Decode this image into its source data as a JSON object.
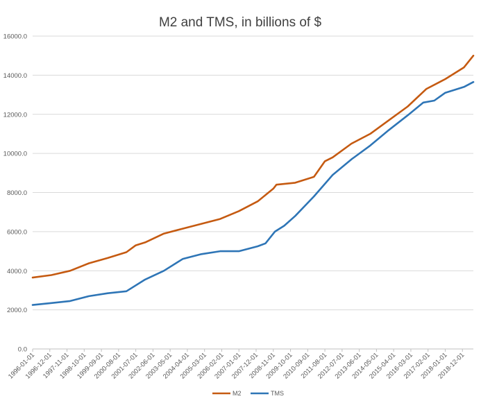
{
  "chart_data": {
    "type": "line",
    "title": "M2 and TMS, in billions of $",
    "xlabel": "",
    "ylabel": "",
    "ylim": [
      0,
      16000
    ],
    "y_ticks": [
      "0.0",
      "2000.0",
      "4000.0",
      "6000.0",
      "8000.0",
      "10000.0",
      "12000.0",
      "14000.0",
      "16000.0"
    ],
    "x_start": "1996-01",
    "x_end": "2019-07",
    "x_tick_labels": [
      "1996-01-01",
      "1996-12-01",
      "1997-11-01",
      "1998-10-01",
      "1999-09-01",
      "2000-08-01",
      "2001-07-01",
      "2002-06-01",
      "2003-05-01",
      "2004-04-01",
      "2005-03-01",
      "2006-02-01",
      "2007-01-01",
      "2007-12-01",
      "2008-11-01",
      "2009-10-01",
      "2010-09-01",
      "2011-08-01",
      "2012-07-01",
      "2013-06-01",
      "2014-05-01",
      "2015-04-01",
      "2016-03-01",
      "2017-02-01",
      "2018-01-01",
      "2018-12-01"
    ],
    "grid": true,
    "legend_position": "bottom",
    "series": [
      {
        "name": "M2",
        "color": "#c55a11",
        "x": [
          "1996-01-01",
          "1997-01-01",
          "1998-01-01",
          "1999-01-01",
          "2000-01-01",
          "2001-01-01",
          "2001-07-01",
          "2002-01-01",
          "2003-01-01",
          "2004-01-01",
          "2005-01-01",
          "2006-01-01",
          "2007-01-01",
          "2008-01-01",
          "2008-11-01",
          "2009-01-01",
          "2010-01-01",
          "2011-01-01",
          "2011-08-01",
          "2012-01-01",
          "2013-01-01",
          "2014-01-01",
          "2015-01-01",
          "2016-01-01",
          "2017-01-01",
          "2018-01-01",
          "2019-01-01",
          "2019-07-01"
        ],
        "values": [
          3650,
          3780,
          4000,
          4380,
          4650,
          4950,
          5300,
          5450,
          5900,
          6150,
          6400,
          6650,
          7050,
          7550,
          8200,
          8400,
          8500,
          8800,
          9600,
          9800,
          10500,
          11000,
          11700,
          12400,
          13300,
          13800,
          14400,
          15000
        ]
      },
      {
        "name": "TMS",
        "color": "#2e75b6",
        "x": [
          "1996-01-01",
          "1997-01-01",
          "1998-01-01",
          "1999-01-01",
          "2000-01-01",
          "2001-01-01",
          "2002-01-01",
          "2003-01-01",
          "2004-01-01",
          "2005-01-01",
          "2006-01-01",
          "2007-01-01",
          "2008-01-01",
          "2008-06-01",
          "2008-12-01",
          "2009-06-01",
          "2010-01-01",
          "2011-01-01",
          "2012-01-01",
          "2013-01-01",
          "2014-01-01",
          "2015-01-01",
          "2016-01-01",
          "2016-11-01",
          "2017-06-01",
          "2018-01-01",
          "2019-01-01",
          "2019-07-01"
        ],
        "values": [
          2250,
          2350,
          2450,
          2700,
          2850,
          2950,
          3550,
          4000,
          4600,
          4850,
          5000,
          5000,
          5250,
          5400,
          6000,
          6300,
          6800,
          7800,
          8900,
          9700,
          10400,
          11200,
          11950,
          12600,
          12700,
          13100,
          13400,
          13650
        ]
      }
    ]
  }
}
